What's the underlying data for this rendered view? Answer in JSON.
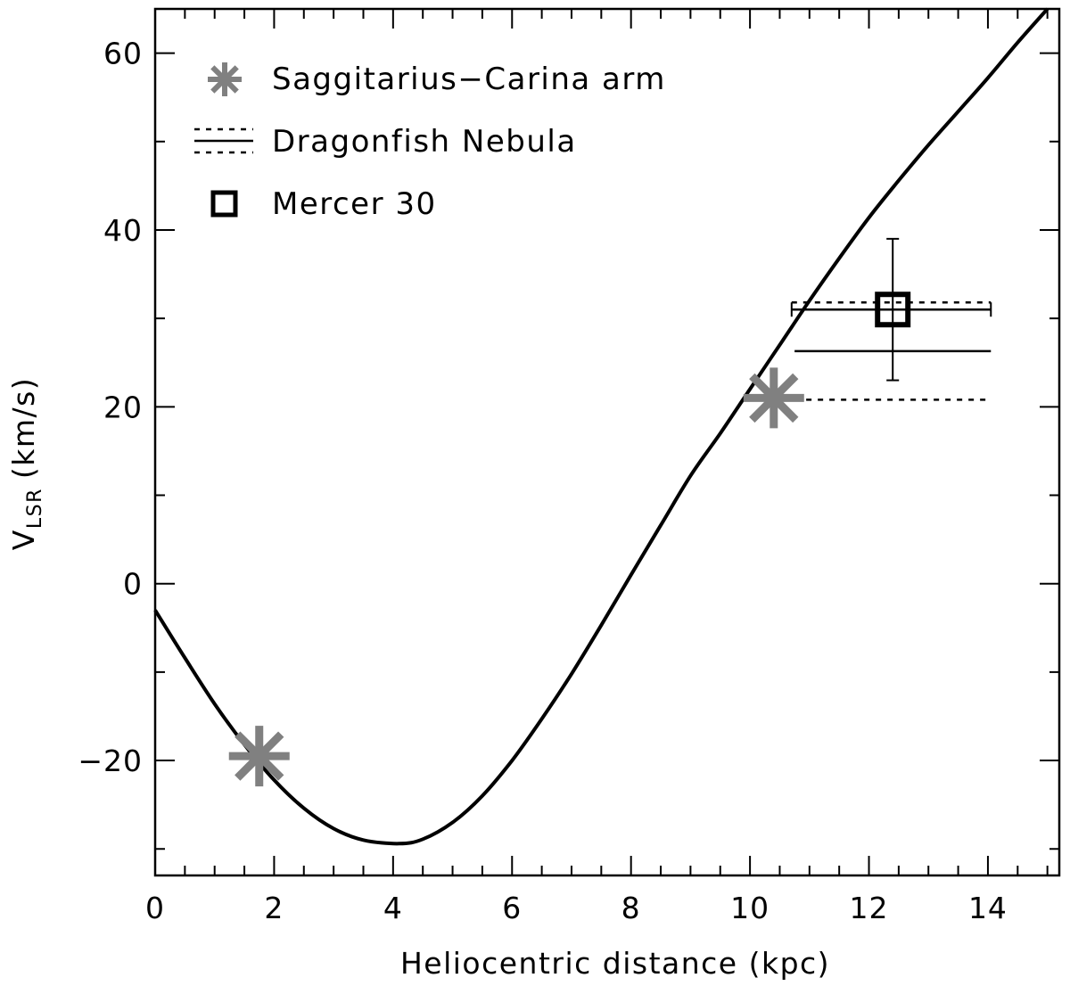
{
  "chart_data": {
    "type": "scatter",
    "xlabel": "Heliocentric distance (kpc)",
    "ylabel": {
      "main": "V",
      "subscript": "LSR",
      "unit": "(km/s)"
    },
    "xlim": [
      0,
      15.2
    ],
    "ylim": [
      -33,
      65
    ],
    "x_ticks": [
      0,
      2,
      4,
      6,
      8,
      10,
      12,
      14
    ],
    "x_tick_labels": [
      "0",
      "2",
      "4",
      "6",
      "8",
      "10",
      "12",
      "14"
    ],
    "x_minor_step": 0.5,
    "y_ticks": [
      -20,
      0,
      20,
      40,
      60
    ],
    "y_tick_labels": [
      "−20",
      "0",
      "20",
      "40",
      "60"
    ],
    "y_minor_step": 10,
    "grid": false,
    "legend_position": "top-left",
    "legend": [
      {
        "label": "Saggitarius−Carina arm",
        "marker": "asterisk",
        "color": "#808080"
      },
      {
        "label": "Dragonfish Nebula",
        "marker": "solid-dotted-lines",
        "color": "#000000"
      },
      {
        "label": "Mercer 30",
        "marker": "open-square",
        "color": "#000000"
      }
    ],
    "rotation_curve": {
      "color": "#000000",
      "points": [
        [
          0.0,
          -3.0
        ],
        [
          0.5,
          -8.4
        ],
        [
          1.0,
          -13.6
        ],
        [
          1.5,
          -18.2
        ],
        [
          2.0,
          -22.2
        ],
        [
          2.5,
          -25.4
        ],
        [
          3.0,
          -27.7
        ],
        [
          3.5,
          -29.0
        ],
        [
          4.1,
          -29.4
        ],
        [
          4.5,
          -28.9
        ],
        [
          5.0,
          -27.0
        ],
        [
          5.5,
          -24.0
        ],
        [
          6.0,
          -20.0
        ],
        [
          6.5,
          -15.3
        ],
        [
          7.0,
          -10.2
        ],
        [
          7.5,
          -4.7
        ],
        [
          8.0,
          1.0
        ],
        [
          8.5,
          6.6
        ],
        [
          9.0,
          12.2
        ],
        [
          9.5,
          17.0
        ],
        [
          10.0,
          22.0
        ],
        [
          10.5,
          27.0
        ],
        [
          11.0,
          32.0
        ],
        [
          11.5,
          36.8
        ],
        [
          12.0,
          41.4
        ],
        [
          12.5,
          45.6
        ],
        [
          13.0,
          49.6
        ],
        [
          13.5,
          53.4
        ],
        [
          14.0,
          57.2
        ],
        [
          14.5,
          61.2
        ],
        [
          15.0,
          65.0
        ]
      ]
    },
    "series": [
      {
        "name": "Saggitarius−Carina arm",
        "marker": "asterisk",
        "color": "#808080",
        "points": [
          [
            1.75,
            -19.5
          ],
          [
            10.4,
            21.0
          ]
        ]
      },
      {
        "name": "Dragonfish Nebula",
        "segments": [
          {
            "style": "dotted",
            "x": [
              10.7,
              14.05
            ],
            "y": 31.8
          },
          {
            "style": "solid",
            "x": [
              10.7,
              14.05
            ],
            "y": 31.0
          },
          {
            "style": "solid",
            "x": [
              10.75,
              14.05
            ],
            "y": 26.3
          },
          {
            "style": "dotted",
            "x": [
              10.75,
              14.05
            ],
            "y": 20.8
          }
        ]
      },
      {
        "name": "Mercer 30",
        "marker": "open-square",
        "color": "#000000",
        "points": [
          {
            "x": 12.4,
            "y": 31.0,
            "y_err_low": 23.0,
            "y_err_high": 39.0
          }
        ]
      }
    ]
  }
}
